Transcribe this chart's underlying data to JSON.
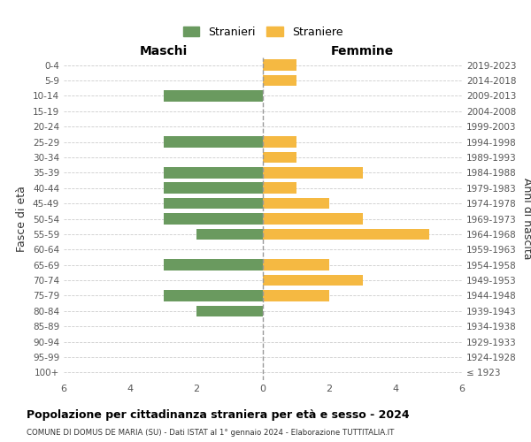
{
  "age_groups": [
    "0-4",
    "5-9",
    "10-14",
    "15-19",
    "20-24",
    "25-29",
    "30-34",
    "35-39",
    "40-44",
    "45-49",
    "50-54",
    "55-59",
    "60-64",
    "65-69",
    "70-74",
    "75-79",
    "80-84",
    "85-89",
    "90-94",
    "95-99",
    "100+"
  ],
  "birth_years": [
    "2019-2023",
    "2014-2018",
    "2009-2013",
    "2004-2008",
    "1999-2003",
    "1994-1998",
    "1989-1993",
    "1984-1988",
    "1979-1983",
    "1974-1978",
    "1969-1973",
    "1964-1968",
    "1959-1963",
    "1954-1958",
    "1949-1953",
    "1944-1948",
    "1939-1943",
    "1934-1938",
    "1929-1933",
    "1924-1928",
    "≤ 1923"
  ],
  "maschi": [
    0,
    0,
    3,
    0,
    0,
    3,
    0,
    3,
    3,
    3,
    3,
    2,
    0,
    3,
    0,
    3,
    2,
    0,
    0,
    0,
    0
  ],
  "femmine": [
    1,
    1,
    0,
    0,
    0,
    1,
    1,
    3,
    1,
    2,
    3,
    5,
    0,
    2,
    3,
    2,
    0,
    0,
    0,
    0,
    0
  ],
  "maschi_color": "#6a9a5f",
  "femmine_color": "#f5b942",
  "title": "Popolazione per cittadinanza straniera per età e sesso - 2024",
  "subtitle": "COMUNE DI DOMUS DE MARIA (SU) - Dati ISTAT al 1° gennaio 2024 - Elaborazione TUTTITALIA.IT",
  "legend_maschi": "Stranieri",
  "legend_femmine": "Straniere",
  "xlabel_left": "Maschi",
  "xlabel_right": "Femmine",
  "ylabel_left": "Fasce di età",
  "ylabel_right": "Anni di nascita",
  "xlim": 6,
  "background_color": "#ffffff",
  "grid_color": "#cccccc"
}
